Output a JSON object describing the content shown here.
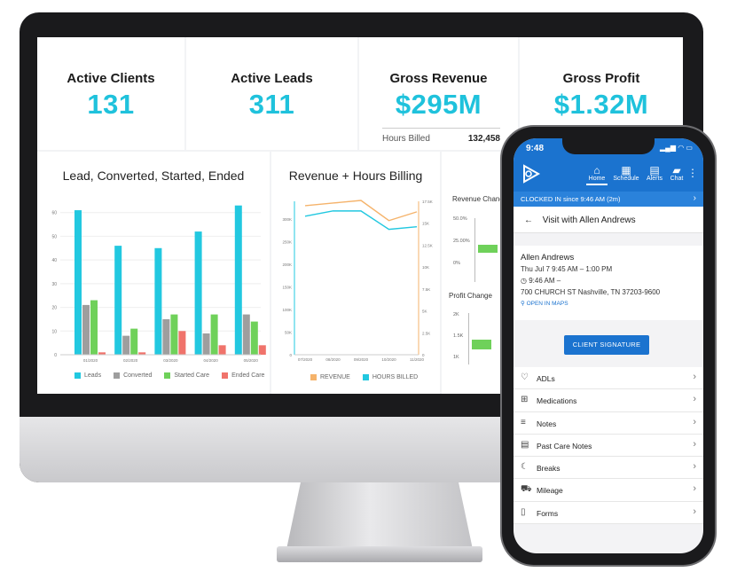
{
  "kpis": [
    {
      "title": "Active Clients",
      "value": "131"
    },
    {
      "title": "Active Leads",
      "value": "311"
    },
    {
      "title": "Gross Revenue",
      "value": "$295M",
      "sub_label": "Hours Billed",
      "sub_value": "132,458"
    },
    {
      "title": "Gross Profit",
      "value": "$1.32M"
    }
  ],
  "charts": {
    "lead": {
      "title": "Lead, Converted, Started, Ended",
      "legend": [
        "Leads",
        "Converted",
        "Started Care",
        "Ended Care"
      ]
    },
    "revenue": {
      "title": "Revenue + Hours Billing",
      "legend": [
        "REVENUE",
        "HOURS BILLED"
      ]
    },
    "small": {
      "revenue_change": "Revenue Change",
      "profit_change": "Profit Change"
    }
  },
  "chart_data": [
    {
      "type": "bar",
      "title": "Lead, Converted, Started, Ended",
      "categories": [
        "01/2020",
        "02/2020",
        "03/2020",
        "04/2020",
        "05/2020"
      ],
      "ylim": [
        0,
        70
      ],
      "yticks": [
        "0",
        "10",
        "20",
        "30",
        "40",
        "50",
        "60"
      ],
      "series": [
        {
          "name": "Leads",
          "color": "#22c8e0",
          "values": [
            61,
            46,
            45,
            52,
            63
          ]
        },
        {
          "name": "Converted",
          "color": "#9e9e9e",
          "values": [
            21,
            8,
            15,
            9,
            17
          ]
        },
        {
          "name": "Started Care",
          "color": "#6fd15a",
          "values": [
            23,
            11,
            17,
            17,
            14
          ]
        },
        {
          "name": "Ended Care",
          "color": "#f0736b",
          "values": [
            1,
            1,
            10,
            4,
            4
          ]
        }
      ]
    },
    {
      "type": "line",
      "title": "Revenue + Hours Billing",
      "categories": [
        "07/2020",
        "08/2020",
        "09/2020",
        "10/2020",
        "11/2020"
      ],
      "yticks_left": [
        "0",
        "50K",
        "100K",
        "150K",
        "200K",
        "250K",
        "300K"
      ],
      "yticks_right": [
        "0",
        "2.5K",
        "5K",
        "7.5K",
        "10K",
        "12.5K",
        "15K",
        "17.5K"
      ],
      "series": [
        {
          "name": "REVENUE",
          "color": "#f5b36b",
          "values": [
            17000,
            17300,
            17600,
            15300,
            16300
          ]
        },
        {
          "name": "HOURS BILLED",
          "color": "#22c8e0",
          "values": [
            15800,
            16400,
            16400,
            14300,
            14600
          ]
        }
      ]
    }
  ],
  "small_charts": {
    "revenue_ticks": [
      "50.0%",
      "25.00%",
      "0%"
    ],
    "profit_ticks": [
      "2K",
      "1.5K",
      "1K"
    ]
  },
  "phone": {
    "time": "9:48",
    "nav": [
      {
        "label": "Home",
        "icon": "home-icon"
      },
      {
        "label": "Schedule",
        "icon": "calendar-icon"
      },
      {
        "label": "Alerts",
        "icon": "alerts-icon"
      },
      {
        "label": "Chat",
        "icon": "chat-icon"
      }
    ],
    "clocked_in": "CLOCKED IN",
    "clocked_since": "since 9:46 AM (2m)",
    "visit_title": "Visit with Allen Andrews",
    "client_name": "Allen Andrews",
    "schedule": "Thu Jul 7 9:45 AM – 1:00 PM",
    "clock_time": "9:46 AM –",
    "address": "700 CHURCH ST Nashville, TN 37203-9600",
    "open_maps": "OPEN IN MAPS",
    "signature_button": "CLIENT SIGNATURE",
    "menu": [
      {
        "label": "ADLs",
        "icon": "heart-icon"
      },
      {
        "label": "Medications",
        "icon": "medication-icon"
      },
      {
        "label": "Notes",
        "icon": "notes-icon"
      },
      {
        "label": "Past Care Notes",
        "icon": "clipboard-icon"
      },
      {
        "label": "Breaks",
        "icon": "moon-icon"
      },
      {
        "label": "Mileage",
        "icon": "car-icon"
      },
      {
        "label": "Forms",
        "icon": "document-icon"
      }
    ]
  }
}
